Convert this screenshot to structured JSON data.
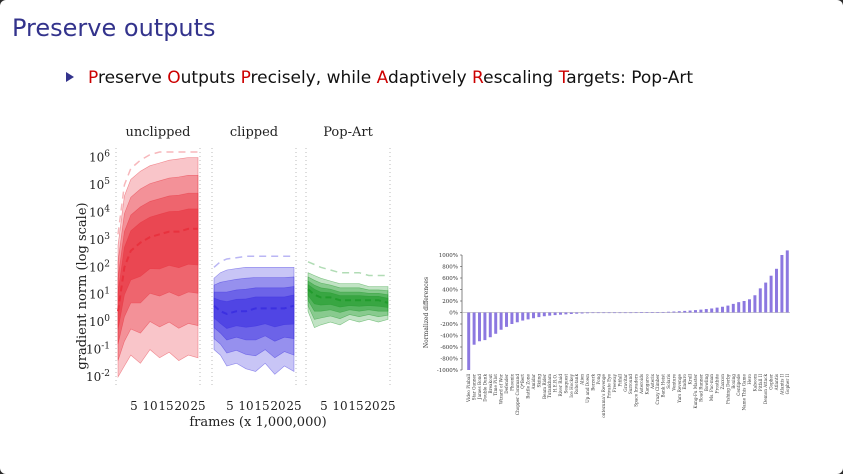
{
  "slide": {
    "title": "Preserve outputs",
    "bullet": {
      "parts": [
        "P",
        "reserve ",
        "O",
        "utputs ",
        "P",
        "recisely, while ",
        "A",
        "daptively ",
        "R",
        "escaling ",
        "T",
        "argets: Pop-Art"
      ]
    }
  },
  "chart_left_ylabel": "gradient norm (log scale)",
  "colors": {
    "title": "#33338c",
    "accent_red": "#cc0000",
    "unclipped": "#e8303c",
    "clipped": "#3a2de0",
    "popart": "#1f9a2a",
    "bars": "#8c78e0"
  },
  "chart_data": [
    {
      "type": "area",
      "panels": [
        "unclipped",
        "clipped",
        "Pop-Art"
      ],
      "xlabel": "frames (x 1,000,000)",
      "ylabel": "gradient norm (log scale)",
      "x_ticks": [
        5,
        10,
        15,
        20,
        25
      ],
      "x_range": [
        0,
        25
      ],
      "y_scale": "log",
      "y_ticks": [
        "10^-2",
        "10^-1",
        "10^0",
        "10^1",
        "10^2",
        "10^3",
        "10^4",
        "10^5",
        "10^6"
      ],
      "y_range_log10": [
        -2.4,
        6.2
      ],
      "series": [
        {
          "name": "unclipped",
          "x": [
            0,
            2,
            4,
            7,
            10,
            13,
            16,
            19,
            22,
            25
          ],
          "upper_log10": [
            2.8,
            4.6,
            5.2,
            5.5,
            5.7,
            5.8,
            5.9,
            5.95,
            6.0,
            6.0
          ],
          "median_log10": [
            0.4,
            2.0,
            2.6,
            2.9,
            3.1,
            3.2,
            3.3,
            3.3,
            3.4,
            3.4
          ],
          "lower_log10": [
            -2.0,
            -1.6,
            -1.2,
            -1.5,
            -1.0,
            -1.3,
            -1.1,
            -1.4,
            -1.2,
            -1.3
          ]
        },
        {
          "name": "clipped",
          "x": [
            0,
            2,
            4,
            7,
            10,
            13,
            16,
            19,
            22,
            25
          ],
          "upper_log10": [
            1.6,
            1.8,
            1.9,
            1.95,
            2.0,
            2.0,
            2.0,
            2.0,
            2.0,
            2.0
          ],
          "median_log10": [
            0.6,
            0.4,
            0.3,
            0.4,
            0.4,
            0.5,
            0.5,
            0.5,
            0.5,
            0.6
          ],
          "lower_log10": [
            -1.0,
            -1.2,
            -1.6,
            -1.5,
            -1.7,
            -1.8,
            -1.5,
            -1.9,
            -1.6,
            -1.8
          ]
        },
        {
          "name": "Pop-Art",
          "x": [
            0,
            2,
            4,
            7,
            10,
            13,
            16,
            19,
            22,
            25
          ],
          "upper_log10": [
            1.8,
            1.7,
            1.6,
            1.5,
            1.4,
            1.4,
            1.4,
            1.3,
            1.3,
            1.3
          ],
          "median_log10": [
            1.2,
            1.0,
            0.9,
            0.9,
            0.8,
            0.8,
            0.8,
            0.8,
            0.8,
            0.7
          ],
          "lower_log10": [
            0.4,
            -0.2,
            -0.1,
            0.0,
            -0.1,
            0.1,
            0.0,
            0.1,
            0.0,
            0.1
          ]
        }
      ]
    },
    {
      "type": "bar",
      "ylabel": "Normalized differences",
      "y_ticks": [
        "1000%",
        "800%",
        "600%",
        "400%",
        "200%",
        "0%",
        "-200%",
        "-400%",
        "-600%",
        "-800%",
        "-1000%"
      ],
      "ylim": [
        -1000,
        1000
      ],
      "categories": [
        "Video Pinball",
        "Star Gunner",
        "James Bond",
        "Double Dunk",
        "Breakout",
        "Time Pilot",
        "Wizard of Wor",
        "Defender",
        "Phoenix",
        "Chopper Command",
        "Q*Bert",
        "Battle Zone",
        "Amidar",
        "Skiing",
        "Beam Rider",
        "Tutankham",
        "H.E.R.O.",
        "River Raid",
        "Seaquest",
        "Ice Hockey",
        "Robotank",
        "Alien",
        "Up and Down",
        "Berzerk",
        "Pong",
        "Montezuma's Revenge",
        "Private Eye",
        "Freeway",
        "Pitfall",
        "Gravitar",
        "Surround",
        "Space Invaders",
        "Asteroids",
        "Kangaroo",
        "Asterix",
        "Crazy Climber",
        "Bank Heist",
        "Solaris",
        "Venture",
        "Yars Revenge",
        "Enduro",
        "Krull",
        "Kung-Fu Master",
        "Road Runner",
        "Bowling",
        "Ms. Pac-man",
        "Frostbite",
        "Zaxxon",
        "Fishing Derby",
        "Boxing",
        "Centipede",
        "Name This Game",
        "Hero",
        "Kaboom",
        "Pitfall II",
        "Demon Attack",
        "Gopher",
        "Atlantis",
        "Atlantis II",
        "Gopher II"
      ],
      "values": [
        -1000,
        -560,
        -500,
        -480,
        -430,
        -370,
        -300,
        -250,
        -200,
        -170,
        -140,
        -120,
        -100,
        -80,
        -65,
        -55,
        -45,
        -38,
        -32,
        -26,
        -21,
        -17,
        -13,
        -10,
        -8,
        -6,
        -4,
        -3,
        -2,
        -1,
        0,
        1,
        2,
        3,
        4,
        6,
        9,
        13,
        17,
        22,
        28,
        34,
        42,
        50,
        60,
        70,
        85,
        100,
        120,
        150,
        180,
        200,
        230,
        300,
        420,
        520,
        640,
        760,
        1000,
        1080
      ]
    }
  ]
}
